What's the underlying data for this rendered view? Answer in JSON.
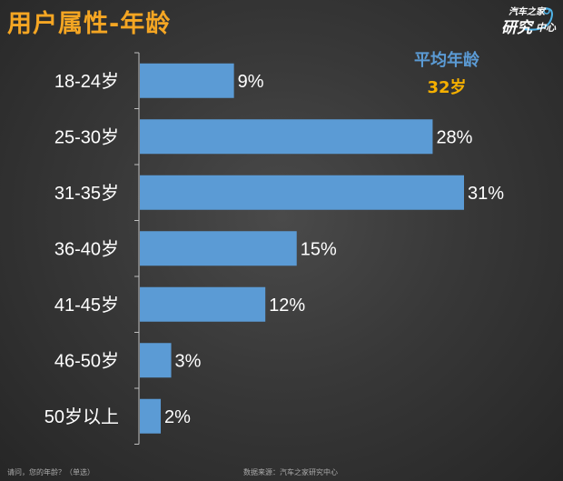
{
  "title": "用户属性-年龄",
  "logo": {
    "line1": "汽车之家",
    "line2": "研究",
    "line3": "中心"
  },
  "average": {
    "label": "平均年龄",
    "value": "32岁"
  },
  "chart_data": {
    "type": "bar",
    "orientation": "horizontal",
    "title": "用户属性-年龄",
    "categories": [
      "18-24岁",
      "25-30岁",
      "31-35岁",
      "36-40岁",
      "41-45岁",
      "46-50岁",
      "50岁以上"
    ],
    "values": [
      9,
      28,
      31,
      15,
      12,
      3,
      2
    ],
    "value_labels": [
      "9%",
      "28%",
      "31%",
      "15%",
      "12%",
      "3%",
      "2%"
    ],
    "unit": "%",
    "bar_color": "#5b9bd5",
    "xlim": [
      0,
      31
    ],
    "grid": false
  },
  "footer": {
    "question": "请问，您的年龄？（单选）",
    "source": "数据来源：汽车之家研究中心"
  }
}
